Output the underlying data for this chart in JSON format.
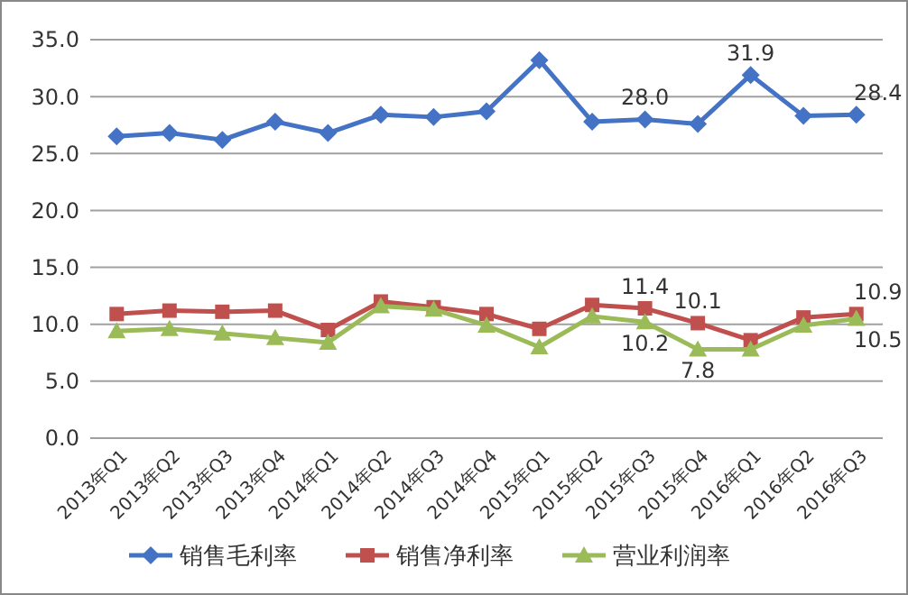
{
  "chart_data": {
    "type": "line",
    "categories": [
      "2013年Q1",
      "2013年Q2",
      "2013年Q3",
      "2013年Q4",
      "2014年Q1",
      "2014年Q2",
      "2014年Q3",
      "2014年Q4",
      "2015年Q1",
      "2015年Q2",
      "2015年Q3",
      "2015年Q4",
      "2016年Q1",
      "2016年Q2",
      "2016年Q3"
    ],
    "series": [
      {
        "name": "销售毛利率",
        "color": "#4472c4",
        "marker": "diamond",
        "values": [
          26.5,
          26.8,
          26.2,
          27.8,
          26.8,
          28.4,
          28.2,
          28.7,
          33.2,
          27.8,
          28.0,
          27.6,
          31.9,
          28.3,
          28.4
        ],
        "value_labels": [
          null,
          null,
          null,
          null,
          null,
          null,
          null,
          null,
          null,
          null,
          "28.0",
          null,
          "31.9",
          null,
          "28.4"
        ]
      },
      {
        "name": "销售净利率",
        "color": "#c0504d",
        "marker": "square",
        "values": [
          10.9,
          11.2,
          11.1,
          11.2,
          9.5,
          12.0,
          11.5,
          10.9,
          9.6,
          11.7,
          11.4,
          10.1,
          8.6,
          10.6,
          10.9
        ],
        "value_labels": [
          null,
          null,
          null,
          null,
          null,
          null,
          null,
          null,
          null,
          null,
          "11.4",
          "10.1",
          null,
          null,
          "10.9"
        ]
      },
      {
        "name": "营业利润率",
        "color": "#9bbb59",
        "marker": "triangle",
        "values": [
          9.4,
          9.6,
          9.2,
          8.8,
          8.4,
          11.6,
          11.3,
          9.9,
          8.0,
          10.7,
          10.2,
          7.8,
          7.8,
          9.9,
          10.5
        ],
        "value_labels": [
          null,
          null,
          null,
          null,
          null,
          null,
          null,
          null,
          null,
          null,
          "10.2",
          "7.8",
          null,
          null,
          "10.5"
        ]
      }
    ],
    "ylim": [
      0,
      35
    ],
    "yticks": [
      {
        "value": 0,
        "label": "0.0"
      },
      {
        "value": 5,
        "label": "5.0"
      },
      {
        "value": 10,
        "label": "10.0"
      },
      {
        "value": 15,
        "label": "15.0"
      },
      {
        "value": 20,
        "label": "20.0"
      },
      {
        "value": 25,
        "label": "25.0"
      },
      {
        "value": 30,
        "label": "30.0"
      },
      {
        "value": 35,
        "label": "35.0"
      }
    ],
    "grid": "y",
    "legend": "bottom",
    "line_style": "solid"
  }
}
